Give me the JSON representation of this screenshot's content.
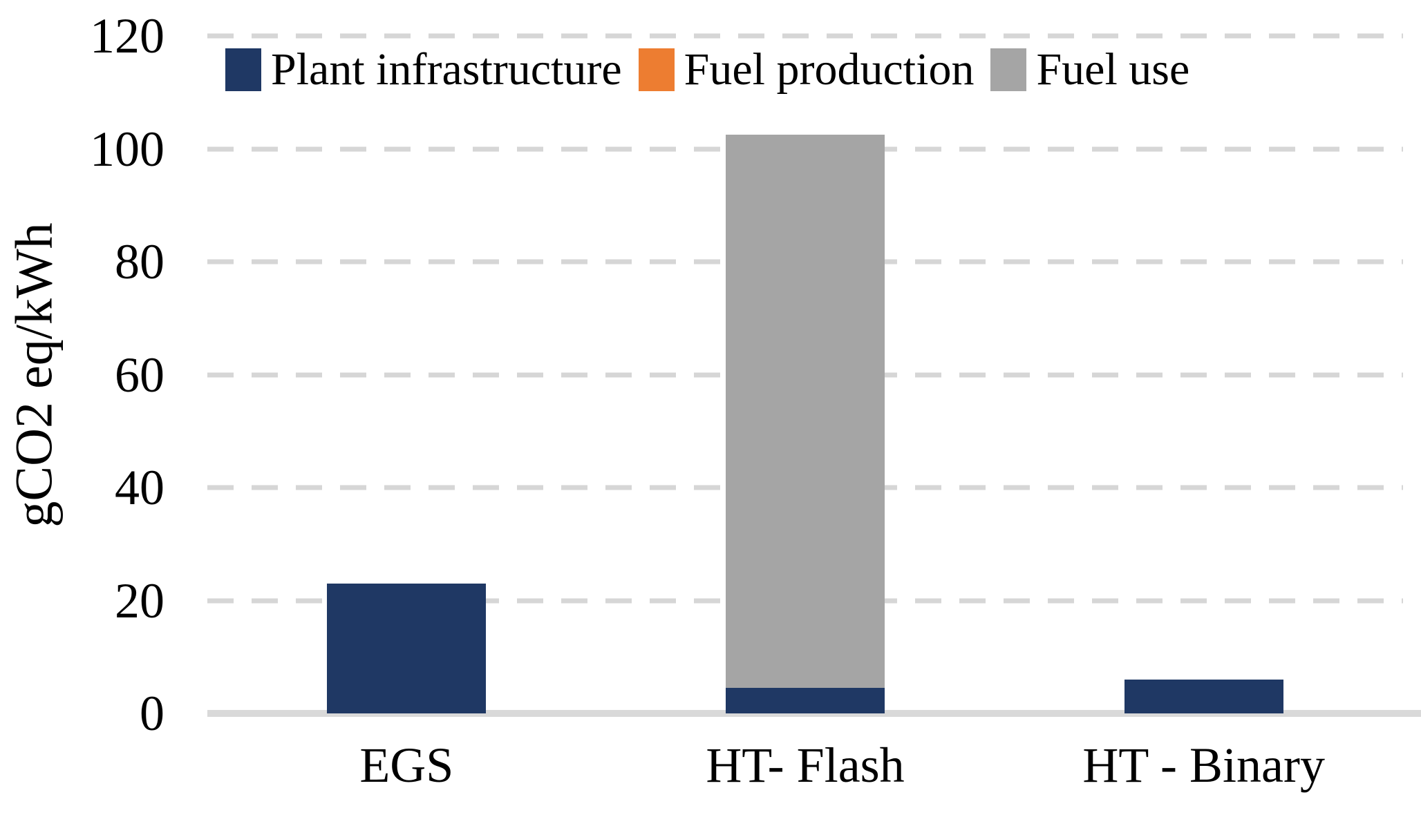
{
  "chart_data": {
    "type": "bar",
    "stacked": true,
    "title": "",
    "xlabel": "",
    "ylabel": "gCO2 eq/kWh",
    "ylim": [
      0,
      120
    ],
    "yticks": [
      0,
      20,
      40,
      60,
      80,
      100,
      120
    ],
    "categories": [
      "EGS",
      "HT- Flash",
      "HT - Binary"
    ],
    "series": [
      {
        "name": "Plant infrastructure",
        "color": "#1F3864",
        "values": [
          23,
          4.5,
          6
        ]
      },
      {
        "name": "Fuel production",
        "color": "#ED7D31",
        "values": [
          0,
          0,
          0
        ]
      },
      {
        "name": "Fuel use",
        "color": "#A5A5A5",
        "values": [
          0,
          98,
          0
        ]
      }
    ],
    "grid": "dashed horizontal gridlines at each y tick",
    "legend_position": "top inside plot area"
  },
  "colors": {
    "background": "#FFFFFF",
    "axis_line": "#D9D9D9",
    "gridline": "#D6D6D6",
    "text": "#000000"
  }
}
